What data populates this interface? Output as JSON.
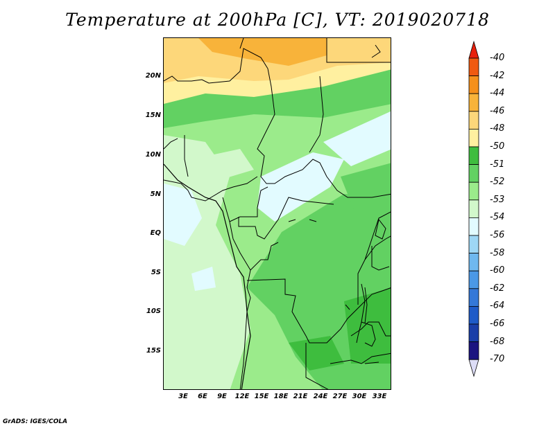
{
  "title": "Temperature at 200hPa [C], VT: 2019020718",
  "lat_labels": [
    "20N",
    "15N",
    "10N",
    "5N",
    "EQ",
    "5S",
    "10S",
    "15S"
  ],
  "lon_labels": [
    "3E",
    "6E",
    "9E",
    "12E",
    "15E",
    "18E",
    "21E",
    "24E",
    "27E",
    "30E",
    "33E"
  ],
  "colorbar": {
    "labels": [
      "-40",
      "-42",
      "-44",
      "-46",
      "-48",
      "-50",
      "-51",
      "-52",
      "-53",
      "-54",
      "-56",
      "-58",
      "-60",
      "-62",
      "-64",
      "-66",
      "-68",
      "-70"
    ],
    "colors": [
      "#e8200c",
      "#f05a10",
      "#f5901b",
      "#f8b33a",
      "#fdd77a",
      "#fff0a0",
      "#3ebd3e",
      "#62d162",
      "#9beb8b",
      "#d2f8cb",
      "#e2fbff",
      "#9ed7f5",
      "#6fb8ef",
      "#4b98e6",
      "#3478d8",
      "#1e5bc8",
      "#1a3ea8",
      "#1b1480",
      "#ddddf7"
    ]
  },
  "palette": {
    "orange": "#f8b33a",
    "light_orange": "#fdd77a",
    "yellow": "#fff0a0",
    "green_dark": "#3ebd3e",
    "green": "#62d162",
    "green_light": "#9beb8b",
    "green_pale": "#d2f8cb",
    "cyan_pale": "#e2fbff"
  },
  "credit": "GrADS: IGES/COLA"
}
